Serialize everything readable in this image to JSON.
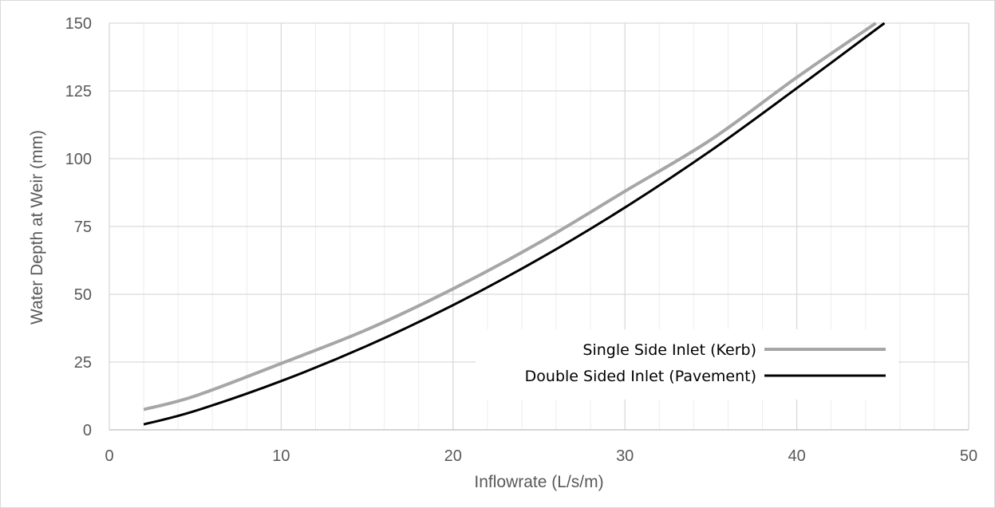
{
  "chart_data": {
    "type": "line",
    "title": "",
    "xlabel": "Inflowrate (L/s/m)",
    "ylabel": "Water Depth at Weir (mm)",
    "xlim": [
      0,
      50
    ],
    "ylim": [
      0,
      150
    ],
    "xticks": [
      "0",
      "10",
      "20",
      "30",
      "40",
      "50"
    ],
    "yticks": [
      "0",
      "25",
      "50",
      "75",
      "100",
      "125",
      "150"
    ],
    "grid": true,
    "legend_position": "bottom-right",
    "series": [
      {
        "name": "Single Side Inlet (Kerb)",
        "color": "#a6a6a6",
        "x": [
          2,
          5,
          10,
          15,
          20,
          25,
          30,
          35,
          40,
          44.6
        ],
        "y": [
          7.5,
          12.5,
          24.5,
          37,
          52,
          69,
          88,
          107,
          130,
          150
        ]
      },
      {
        "name": "Double Sided Inlet (Pavement)",
        "color": "#000000",
        "x": [
          2,
          5,
          10,
          15,
          20,
          25,
          30,
          35,
          40,
          45.1
        ],
        "y": [
          2,
          7,
          18,
          31,
          46,
          63,
          82,
          103,
          126,
          150
        ]
      }
    ]
  }
}
